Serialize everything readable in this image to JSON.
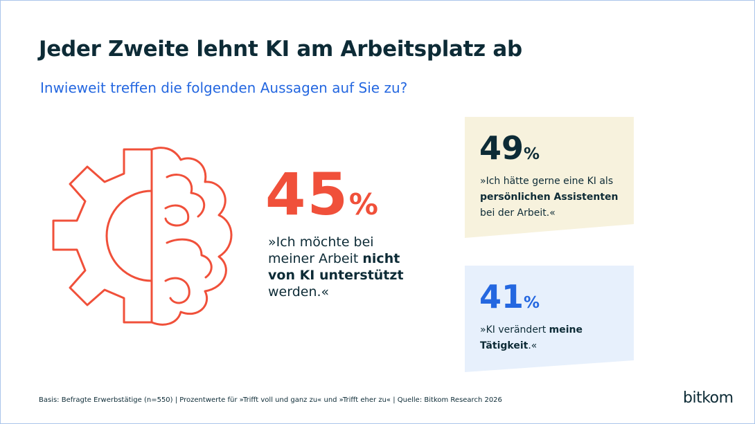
{
  "header": {
    "title": "Jeder Zweite lehnt KI am Arbeitsplatz ab",
    "subtitle": "Inwieweit treffen die folgenden Aussagen auf Sie zu?"
  },
  "stats": [
    {
      "number": "45",
      "unit": "%",
      "quote": {
        "before": "»Ich möchte bei meiner Arbeit ",
        "bold": "nicht von KI unterstützt",
        "after": " werden.«"
      }
    },
    {
      "number": "49",
      "unit": "%",
      "quote": {
        "before": "»Ich hätte gerne eine KI als ",
        "bold": "persönlichen Assistenten",
        "after": " bei der Arbeit.«"
      }
    },
    {
      "number": "41",
      "unit": "%",
      "quote": {
        "before": "»KI verändert ",
        "bold": "meine Tätigkeit",
        "after": ".«"
      }
    }
  ],
  "footer": {
    "note": "Basis: Befragte Erwerbstätige (n=550) | Prozentwerte für »Trifft voll und ganz zu« und »Trifft eher zu« | Quelle: Bitkom Research 2026",
    "logo": "bitkom"
  }
}
